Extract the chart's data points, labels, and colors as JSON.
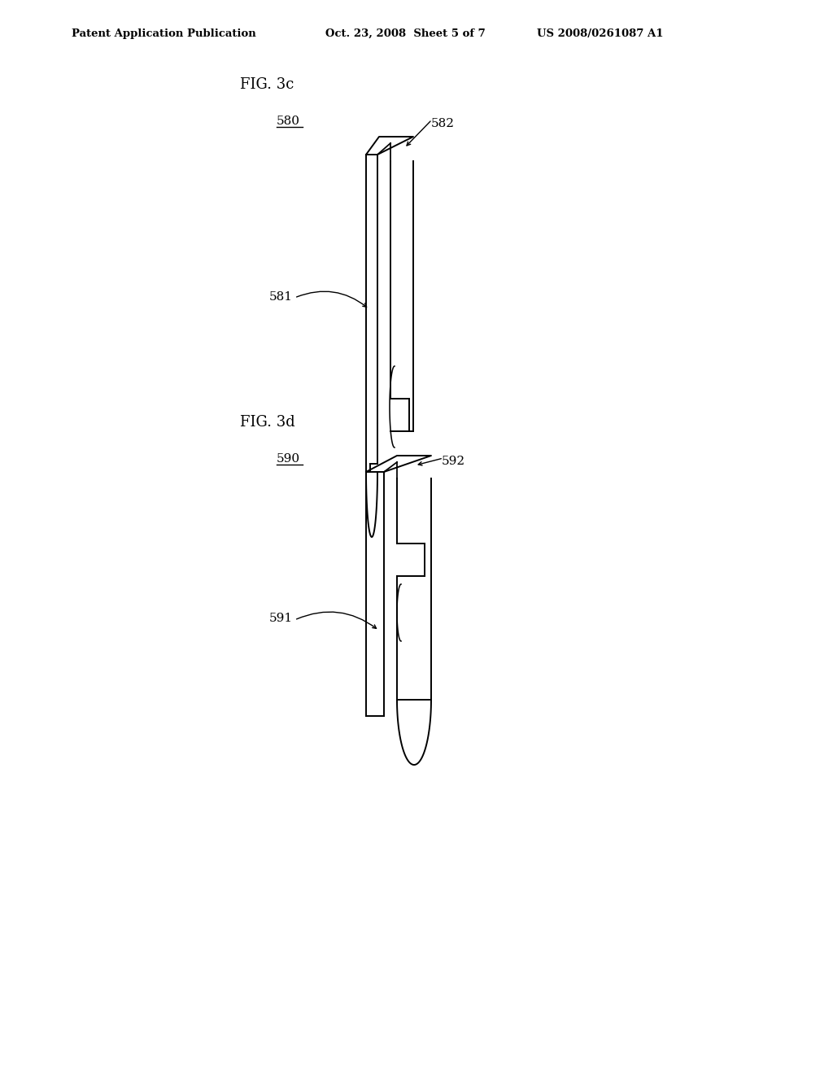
{
  "background_color": "#ffffff",
  "header_left": "Patent Application Publication",
  "header_mid": "Oct. 23, 2008  Sheet 5 of 7",
  "header_right": "US 2008/0261087 A1",
  "fig_3c_label": "FIG. 3c",
  "fig_3d_label": "FIG. 3d",
  "label_580": "580",
  "label_582": "582",
  "label_581": "581",
  "label_590": "590",
  "label_592": "592",
  "label_591": "591",
  "line_color": "#000000",
  "line_width": 1.4,
  "font_size_header": 9.5,
  "font_size_label": 11,
  "font_size_fig": 13
}
